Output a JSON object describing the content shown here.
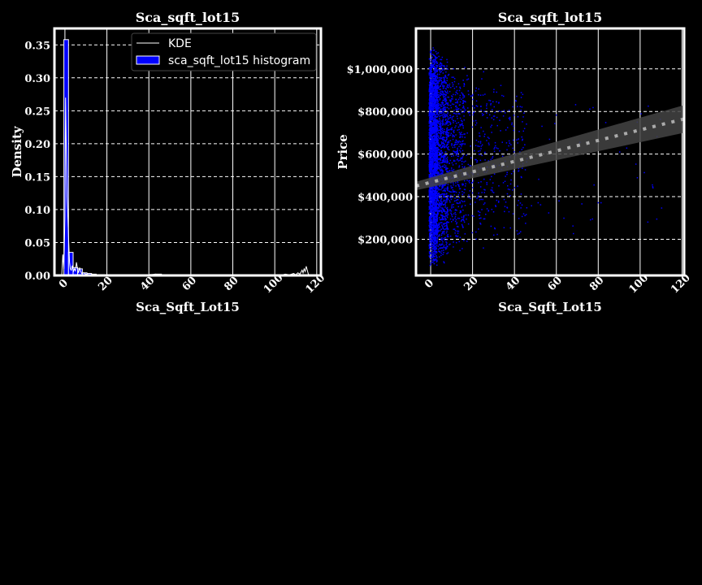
{
  "chart_data": [
    {
      "type": "histogram",
      "title": "Sca_sqft_lot15",
      "xlabel": "Sca_Sqft_Lot15",
      "ylabel": "Density",
      "xlim": [
        -5,
        122
      ],
      "ylim": [
        0,
        0.375
      ],
      "xticks": [
        0,
        20,
        40,
        60,
        80,
        100,
        120
      ],
      "yticks": [
        0.0,
        0.05,
        0.1,
        0.15,
        0.2,
        0.25,
        0.3,
        0.35
      ],
      "ytick_labels": [
        "0.00",
        "0.05",
        "0.10",
        "0.15",
        "0.20",
        "0.25",
        "0.30",
        "0.35"
      ],
      "grid": true,
      "legend_position": "top-right",
      "legend": [
        "KDE",
        "sca_sqft_lot15 histogram"
      ],
      "series": [
        {
          "name": "sca_sqft_lot15 histogram",
          "kind": "bars",
          "color": "#0000ff",
          "bins": [
            {
              "x0": -0.5,
              "x1": 1.7,
              "value": 0.358
            },
            {
              "x0": 1.7,
              "x1": 3.9,
              "value": 0.035
            },
            {
              "x0": 3.9,
              "x1": 6.1,
              "value": 0.012
            },
            {
              "x0": 6.1,
              "x1": 8.3,
              "value": 0.01
            },
            {
              "x0": 8.3,
              "x1": 10.5,
              "value": 0.004
            },
            {
              "x0": 10.5,
              "x1": 12.7,
              "value": 0.003
            },
            {
              "x0": 12.7,
              "x1": 14.9,
              "value": 0.002
            },
            {
              "x0": 14.9,
              "x1": 17.1,
              "value": 0.001
            },
            {
              "x0": 17.1,
              "x1": 19.3,
              "value": 0.001
            },
            {
              "x0": 19.3,
              "x1": 21.5,
              "value": 0.001
            },
            {
              "x0": 21.5,
              "x1": 25.0,
              "value": 0.0008
            },
            {
              "x0": 40.5,
              "x1": 43.0,
              "value": 0.0015
            },
            {
              "x0": 43.0,
              "x1": 46.0,
              "value": 0.002
            }
          ]
        },
        {
          "name": "KDE",
          "kind": "line",
          "color": "#ffffff",
          "x": [
            -1.5,
            -1.0,
            -0.5,
            0.0,
            0.3,
            0.6,
            1.0,
            1.4,
            1.8,
            2.2,
            2.6,
            3.0,
            3.5,
            4.0,
            4.5,
            5.0,
            5.5,
            6.0,
            6.5,
            7.0,
            7.5,
            8.0,
            9.0,
            10.0,
            12.0,
            15.0,
            20.0,
            30.0,
            40.0,
            43.0,
            45.0,
            47.0,
            60.0,
            80.0,
            95.0,
            100.0,
            103.0,
            105.0,
            107.0,
            109.0,
            110.0,
            111.0,
            112.0,
            113.0,
            113.5,
            114.0,
            114.5,
            115.0,
            116.0,
            117.0
          ],
          "y": [
            0.0,
            0.032,
            0.01,
            0.09,
            0.27,
            0.2,
            0.12,
            0.09,
            0.05,
            0.02,
            0.01,
            0.008,
            0.015,
            0.005,
            0.01,
            0.007,
            0.02,
            0.01,
            0.004,
            0.012,
            0.006,
            0.003,
            0.004,
            0.002,
            0.001,
            0.001,
            0.0005,
            0.0002,
            0.0005,
            0.002,
            0.0015,
            0.0003,
            0.0,
            0.0,
            0.0,
            0.001,
            0.0005,
            0.002,
            0.001,
            0.003,
            0.001,
            0.004,
            0.002,
            0.008,
            0.004,
            0.01,
            0.006,
            0.014,
            0.002,
            0.0
          ]
        }
      ]
    },
    {
      "type": "scatter",
      "title": "Sca_sqft_lot15",
      "xlabel": "Sca_Sqft_Lot15",
      "ylabel": "Price",
      "xlim": [
        -7,
        121
      ],
      "ylim": [
        30000,
        1190000
      ],
      "xticks": [
        0,
        20,
        40,
        60,
        80,
        100,
        120
      ],
      "yticks": [
        200000,
        400000,
        600000,
        800000,
        1000000
      ],
      "ytick_labels": [
        "$200,000",
        "$400,000",
        "$600,000",
        "$800,000",
        "$1,000,000"
      ],
      "grid": true,
      "point_color": "#0000ff",
      "regression": {
        "style": "dotted",
        "color": "#aaaaaa",
        "x": [
          -7,
          121
        ],
        "y": [
          450000,
          765000
        ],
        "ci_color": "#444444",
        "ci_lower": [
          430000,
          700000
        ],
        "ci_upper": [
          470000,
          830000
        ]
      },
      "point_clusters": [
        {
          "x_range": [
            -1,
            3
          ],
          "y_range": [
            60000,
            1120000
          ],
          "count": 2600
        },
        {
          "x_range": [
            3,
            8
          ],
          "y_range": [
            90000,
            1100000
          ],
          "count": 900
        },
        {
          "x_range": [
            8,
            16
          ],
          "y_range": [
            120000,
            1050000
          ],
          "count": 450
        },
        {
          "x_range": [
            16,
            30
          ],
          "y_range": [
            150000,
            1000000
          ],
          "count": 220
        },
        {
          "x_range": [
            30,
            46
          ],
          "y_range": [
            200000,
            950000
          ],
          "count": 160
        },
        {
          "x_range": [
            46,
            110
          ],
          "y_range": [
            200000,
            900000
          ],
          "count": 40
        }
      ]
    }
  ]
}
